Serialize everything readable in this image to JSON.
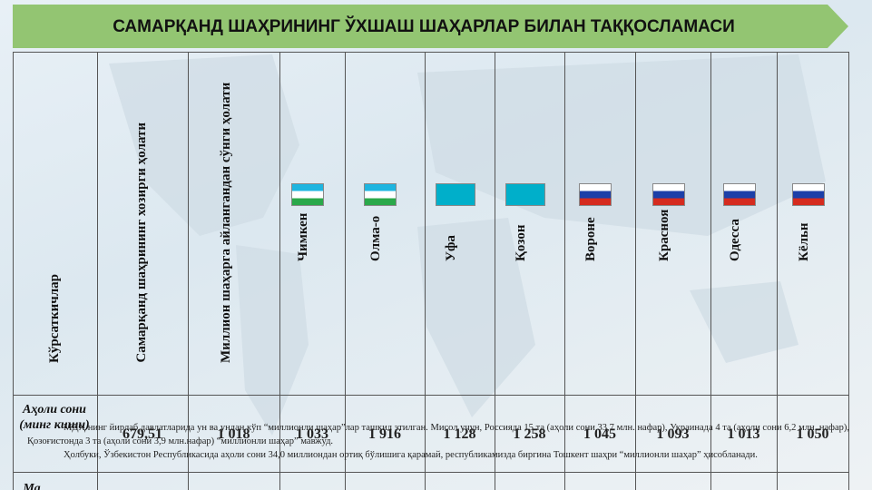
{
  "header": {
    "title": "САМАРҚАНД ШАҲРИНИНГ ЎХШАШ ШАҲАРЛАР БИЛАН ТАҚҚОСЛАМАСИ"
  },
  "table": {
    "header": [
      "Кўрсаткичлар",
      "Самарқанд шаҳрининг хозирги ҳолати",
      "Миллион шаҳарга айлангандан сўнги ҳолати",
      "Чимкен",
      "Олма-о",
      "Уфа",
      "Қозон",
      "Вороне",
      "Красноя",
      "Одесса",
      "Кёльн"
    ],
    "rows": [
      {
        "label": "Аҳоли сони (минг киши)",
        "cells": [
          "679,51",
          "1 018",
          "1 033",
          "1 916",
          "1 128",
          "1 258",
          "1 045",
          "1 093",
          "1 013",
          "1 050"
        ]
      },
      {
        "label": "Ма"
      }
    ]
  },
  "note": {
    "paragraphs": [
      "МДҲ нинг йирлаб давлатларида ун ва ундан кўп “миллионли шаҳар”лар ташкил этилган. Мисол учун, Россияда 15 та (аҳоли сони 33,7 млн. нафар), Украинада 4 та (аҳоли сони 6,2 млн. нафар), Қозоғистонда 3 та (аҳоли сони 3,9 млн.нафар) “миллионли шаҳар” мавжуд.",
      "Ҳолбуки, Ўзбекистон Республикасида аҳоли сони 34,0 миллиондан ортиқ бўлишига қарамай, республикамизда биргина Тошкент шаҳри “миллионли шаҳар” ҳисобланади."
    ]
  }
}
